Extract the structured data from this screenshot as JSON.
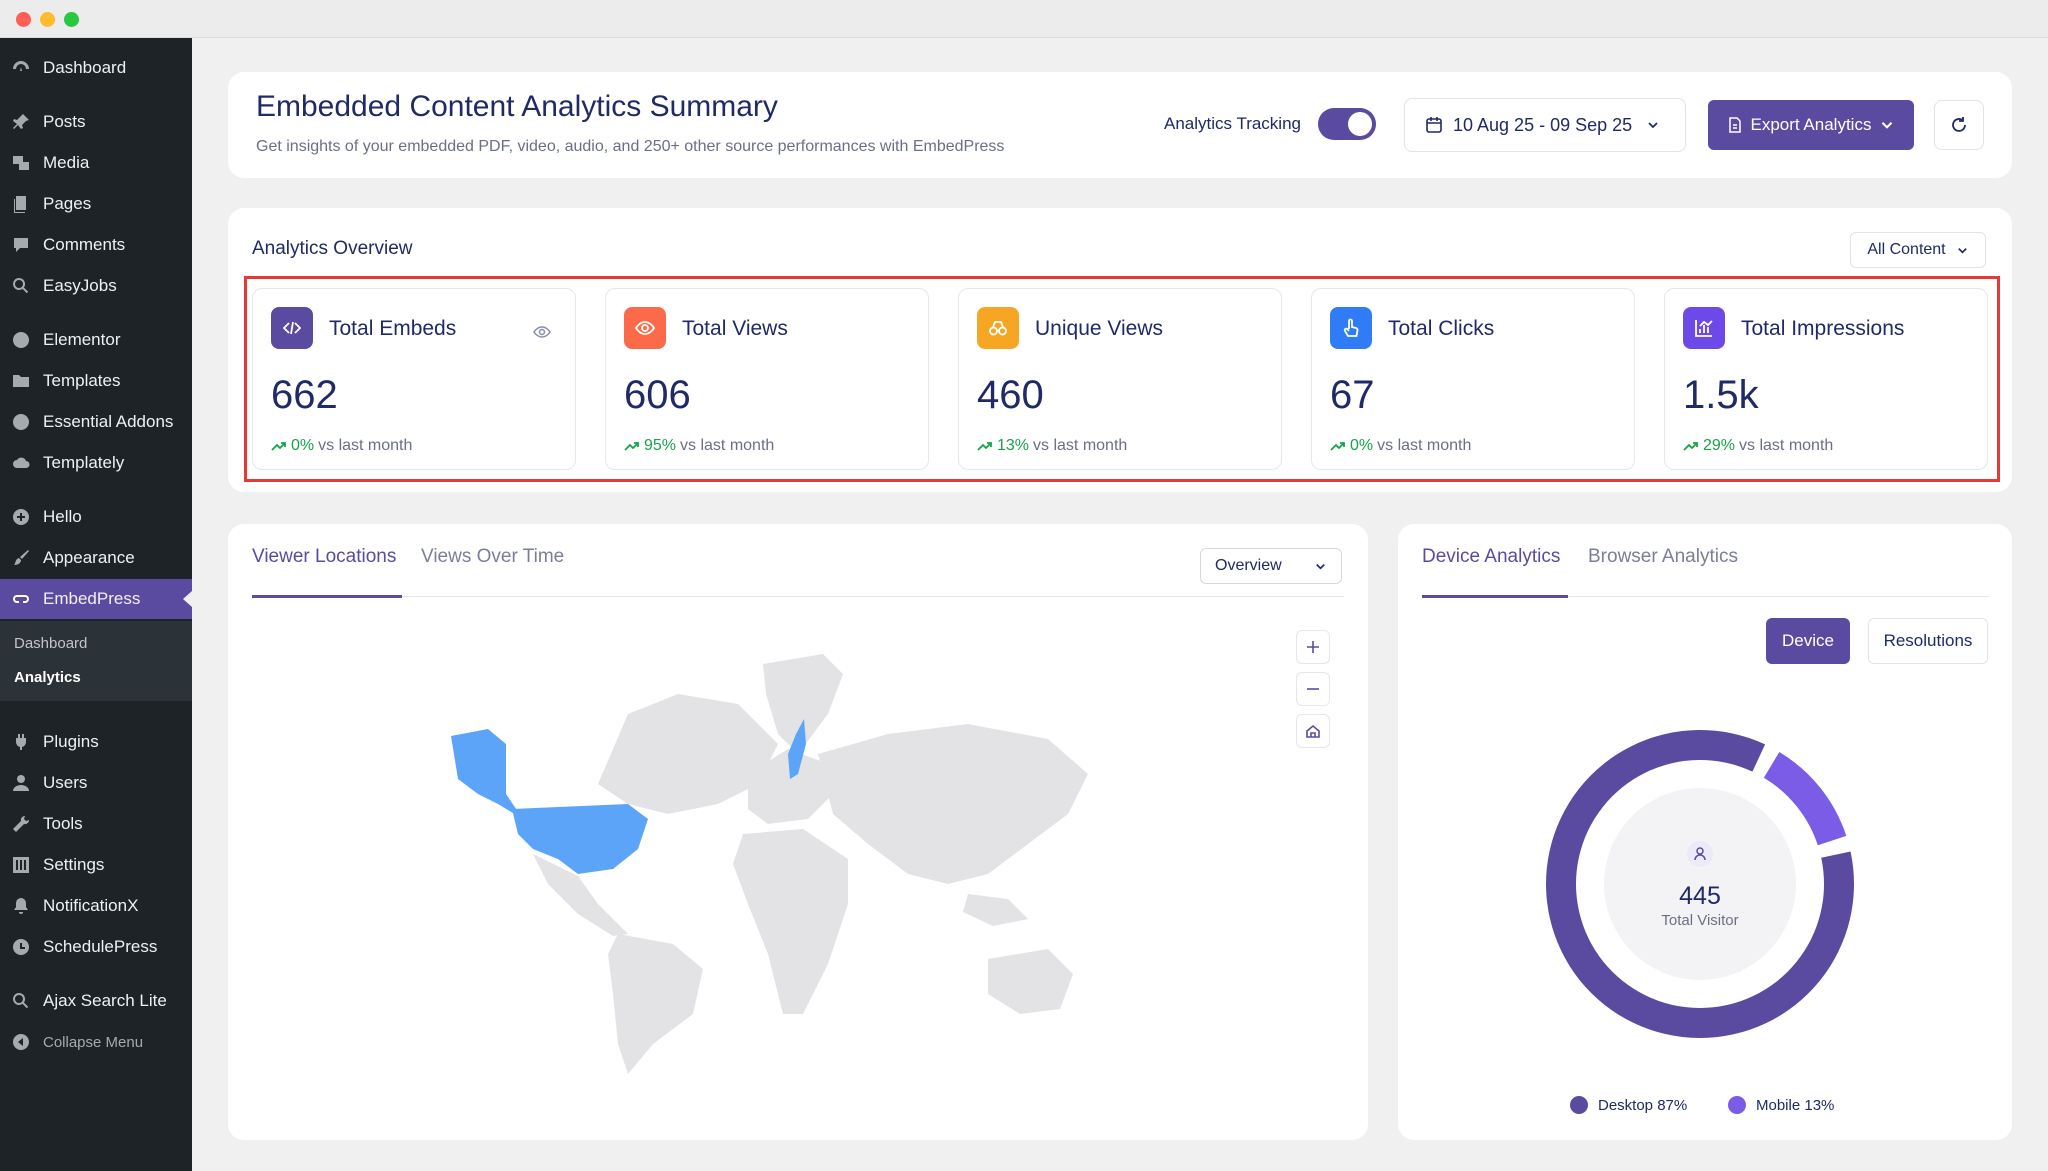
{
  "sidebar": {
    "items": [
      {
        "label": "Dashboard",
        "icon": "dashboard-icon"
      },
      {
        "label": "Posts",
        "icon": "pin-icon"
      },
      {
        "label": "Media",
        "icon": "media-icon"
      },
      {
        "label": "Pages",
        "icon": "pages-icon"
      },
      {
        "label": "Comments",
        "icon": "comment-icon"
      },
      {
        "label": "EasyJobs",
        "icon": "search-icon"
      },
      {
        "label": "Elementor",
        "icon": "elementor-icon"
      },
      {
        "label": "Templates",
        "icon": "folder-icon"
      },
      {
        "label": "Essential Addons",
        "icon": "ea-icon"
      },
      {
        "label": "Templately",
        "icon": "cloud-icon"
      },
      {
        "label": "Hello",
        "icon": "plus-circle-icon"
      },
      {
        "label": "Appearance",
        "icon": "brush-icon"
      },
      {
        "label": "EmbedPress",
        "icon": "embedpress-icon"
      },
      {
        "label": "Plugins",
        "icon": "plug-icon"
      },
      {
        "label": "Users",
        "icon": "user-icon"
      },
      {
        "label": "Tools",
        "icon": "wrench-icon"
      },
      {
        "label": "Settings",
        "icon": "settings-icon"
      },
      {
        "label": "NotificationX",
        "icon": "bell-icon"
      },
      {
        "label": "SchedulePress",
        "icon": "clock-icon"
      },
      {
        "label": "Ajax Search Lite",
        "icon": "search-icon"
      }
    ],
    "submenu": [
      "Dashboard",
      "Analytics"
    ],
    "collapse": "Collapse Menu"
  },
  "header": {
    "title": "Embedded Content Analytics Summary",
    "subtitle": "Get insights of your embedded PDF, video, audio, and 250+ other source performances with EmbedPress",
    "tracking_label": "Analytics Tracking",
    "date_range": "10 Aug 25 - 09 Sep 25",
    "export_label": "Export Analytics"
  },
  "overview": {
    "title": "Analytics Overview",
    "filter": "All Content",
    "stats": [
      {
        "label": "Total Embeds",
        "value": "662",
        "change": "0%",
        "suffix": "vs last month",
        "color": "#5b4ba0"
      },
      {
        "label": "Total Views",
        "value": "606",
        "change": "95%",
        "suffix": "vs last month",
        "color": "#fb6b4a"
      },
      {
        "label": "Unique Views",
        "value": "460",
        "change": "13%",
        "suffix": "vs last month",
        "color": "#f6a623"
      },
      {
        "label": "Total Clicks",
        "value": "67",
        "change": "0%",
        "suffix": "vs last month",
        "color": "#2f7cf6"
      },
      {
        "label": "Total Impressions",
        "value": "1.5k",
        "change": "29%",
        "suffix": "vs last month",
        "color": "#6d4ae8"
      }
    ]
  },
  "locations": {
    "tabs": [
      "Viewer Locations",
      "Views Over Time"
    ],
    "view_select": "Overview"
  },
  "device": {
    "tabs": [
      "Device Analytics",
      "Browser Analytics"
    ],
    "buttons": [
      "Device",
      "Resolutions"
    ],
    "total": "445",
    "total_label": "Total Visitor",
    "legend": [
      {
        "label": "Desktop 87%",
        "color": "#5b4ba0"
      },
      {
        "label": "Mobile 13%",
        "color": "#7b5ce6"
      }
    ]
  },
  "chart_data": {
    "type": "pie",
    "categories": [
      "Desktop",
      "Mobile"
    ],
    "values": [
      87,
      13
    ]
  },
  "colors": {
    "accent": "#5b4ba0",
    "sidebar": "#1d2327",
    "map_highlight": "#5ba4f8",
    "map_land": "#e3e3e6"
  }
}
